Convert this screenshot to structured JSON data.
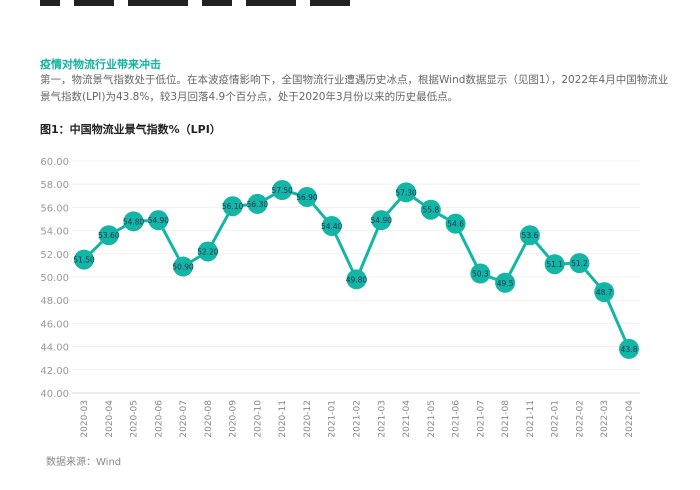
{
  "section_heading": "疫情对物流行业带来冲击",
  "paragraph": "第一，物流景气指数处于低位。在本波疫情影响下，全国物流行业遭遇历史冰点，根据Wind数据显示（见图1），2022年4月中国物流业景气指数(LPI)为43.8%，较3月回落4.9个百分点，处于2020年3月份以来的历史最低点。",
  "source": "数据来源：Wind",
  "chart_data": {
    "type": "line",
    "title": "图1：中国物流业景气指数%（LPI）",
    "categories": [
      "2020-03",
      "2020-04",
      "2020-05",
      "2020-06",
      "2020-07",
      "2020-08",
      "2020-09",
      "2020-10",
      "2020-11",
      "2020-12",
      "2021-01",
      "2021-02",
      "2021-03",
      "2021-04",
      "2021-05",
      "2021-06",
      "2021-07",
      "2021-08",
      "2021-11",
      "2022-01",
      "2022-02",
      "2022-03",
      "2022-04"
    ],
    "values": [
      51.5,
      53.6,
      54.8,
      54.9,
      50.9,
      52.2,
      56.1,
      56.3,
      57.5,
      56.9,
      54.4,
      49.8,
      54.9,
      57.3,
      55.8,
      54.6,
      50.3,
      49.5,
      53.6,
      51.1,
      51.2,
      48.7,
      43.8
    ],
    "data_labels": [
      "51.50",
      "53.60",
      "54.80",
      "54.90",
      "50.90",
      "52.20",
      "56.10",
      "56.30",
      "57.50",
      "56.90",
      "54.40",
      "49.80",
      "54.90",
      "57.30",
      "55.8",
      "54.6",
      "50.3",
      "49.5",
      "53.6",
      "51.1",
      "51.2",
      "48.7",
      "43.8"
    ],
    "y_ticks": [
      "40.00",
      "42.00",
      "44.00",
      "46.00",
      "48.00",
      "50.00",
      "52.00",
      "54.00",
      "56.00",
      "58.00",
      "60.00"
    ],
    "ylim": [
      40,
      60
    ],
    "grid": true,
    "color": "#13b5a5"
  }
}
